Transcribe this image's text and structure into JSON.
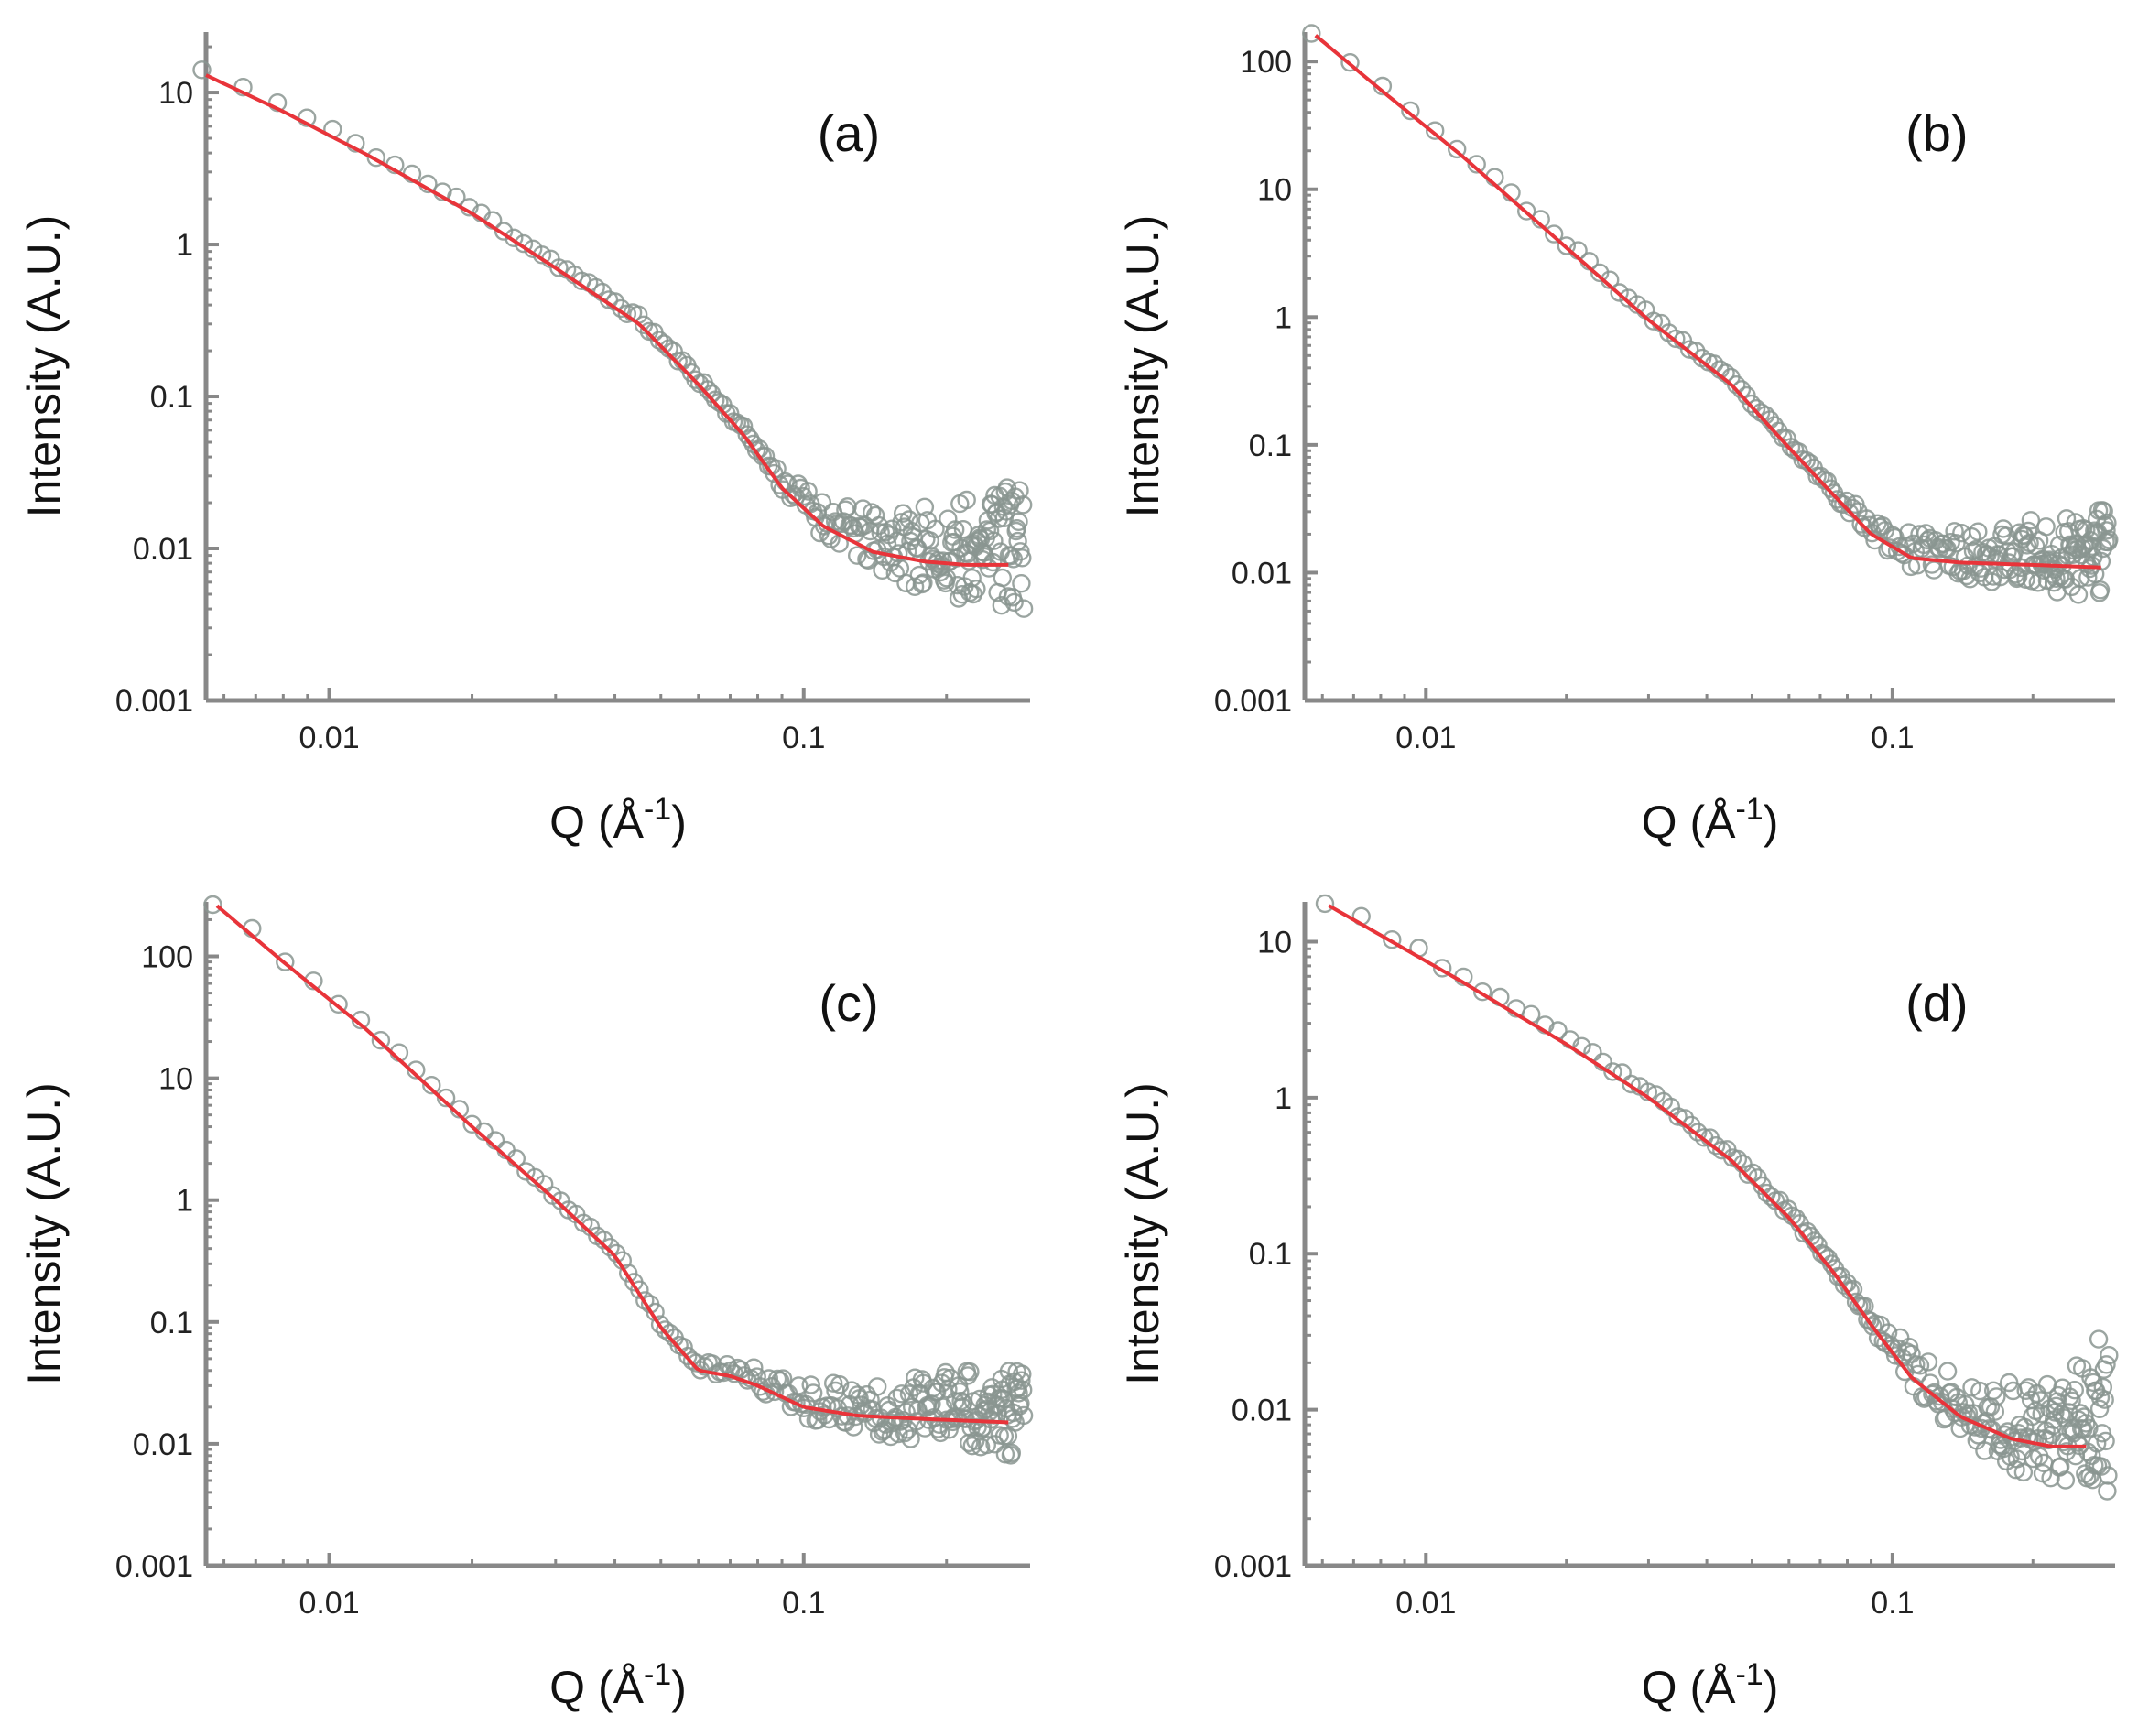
{
  "figure": {
    "description_labels": [
      "(a)",
      "(b)",
      "(c)",
      "(d)"
    ]
  },
  "chart_data": [
    {
      "type": "scatter",
      "panel": "(a)",
      "title": "",
      "xlabel": "Q (Å",
      "xlabel_exp": "-1",
      "xlabel_close": ")",
      "ylabel": "Intensity (A.U.)",
      "xscale": "log",
      "yscale": "log",
      "xlim": [
        0.0055,
        0.3
      ],
      "ylim": [
        0.001,
        25
      ],
      "xticks": [
        0.01,
        0.1
      ],
      "xticklabels": [
        "0.01",
        "0.1"
      ],
      "yticks": [
        0.001,
        0.01,
        0.1,
        1,
        10
      ],
      "yticklabels": [
        "0.001",
        "0.01",
        "0.1",
        "1",
        "10"
      ],
      "fit": {
        "x": [
          0.0055,
          0.008,
          0.012,
          0.02,
          0.03,
          0.045,
          0.06,
          0.075,
          0.09,
          0.11,
          0.14,
          0.18,
          0.22,
          0.27
        ],
        "y": [
          13,
          7.5,
          3.9,
          1.6,
          0.7,
          0.3,
          0.12,
          0.055,
          0.025,
          0.014,
          0.0095,
          0.0082,
          0.0078,
          0.0078
        ]
      },
      "points": {
        "model": "fit",
        "scatter_start": 0.08,
        "scatter_decades_max": 0.65,
        "upturn_from": 0.18,
        "upturn_to_y": 0.04,
        "n": 240,
        "seed": 11
      }
    },
    {
      "type": "scatter",
      "panel": "(b)",
      "title": "",
      "xlabel": "Q (Å",
      "xlabel_exp": "-1",
      "xlabel_close": ")",
      "ylabel": "Intensity (A.U.)",
      "xscale": "log",
      "yscale": "log",
      "xlim": [
        0.0055,
        0.3
      ],
      "ylim": [
        0.001,
        170
      ],
      "xticks": [
        0.01,
        0.1
      ],
      "xticklabels": [
        "0.01",
        "0.1"
      ],
      "yticks": [
        0.001,
        0.01,
        0.1,
        1,
        10,
        100
      ],
      "yticklabels": [
        "0.001",
        "0.01",
        "0.1",
        "1",
        "10",
        "100"
      ],
      "fit": {
        "x": [
          0.0058,
          0.008,
          0.012,
          0.02,
          0.03,
          0.045,
          0.06,
          0.075,
          0.09,
          0.11,
          0.14,
          0.2,
          0.28
        ],
        "y": [
          160,
          60,
          18,
          3.5,
          0.95,
          0.3,
          0.095,
          0.04,
          0.02,
          0.013,
          0.012,
          0.0115,
          0.011
        ]
      },
      "points": {
        "model": "fit",
        "scatter_start": 0.07,
        "scatter_decades_max": 0.55,
        "upturn_from": 0.2,
        "upturn_to_y": 0.035,
        "n": 240,
        "seed": 23
      }
    },
    {
      "type": "scatter",
      "panel": "(c)",
      "title": "",
      "xlabel": "Q (Å",
      "xlabel_exp": "-1",
      "xlabel_close": ")",
      "ylabel": "Intensity (A.U.)",
      "xscale": "log",
      "yscale": "log",
      "xlim": [
        0.0055,
        0.3
      ],
      "ylim": [
        0.001,
        280
      ],
      "xticks": [
        0.01,
        0.1
      ],
      "xticklabels": [
        "0.01",
        "0.1"
      ],
      "yticks": [
        0.001,
        0.01,
        0.1,
        1,
        10,
        100
      ],
      "yticklabels": [
        "0.001",
        "0.01",
        "0.1",
        "1",
        "10",
        "100"
      ],
      "fit": {
        "x": [
          0.0058,
          0.008,
          0.012,
          0.02,
          0.03,
          0.04,
          0.05,
          0.06,
          0.07,
          0.08,
          0.1,
          0.13,
          0.18,
          0.27
        ],
        "y": [
          260,
          90,
          25,
          4,
          1.0,
          0.35,
          0.09,
          0.04,
          0.036,
          0.03,
          0.02,
          0.017,
          0.016,
          0.015
        ]
      },
      "points": {
        "model": "fit",
        "scatter_start": 0.06,
        "scatter_decades_max": 0.6,
        "upturn_from": 0.2,
        "upturn_to_y": 0.04,
        "n": 240,
        "seed": 37
      }
    },
    {
      "type": "scatter",
      "panel": "(d)",
      "title": "",
      "xlabel": "Q (Å",
      "xlabel_exp": "-1",
      "xlabel_close": ")",
      "ylabel": "Intensity (A.U.)",
      "xscale": "log",
      "yscale": "log",
      "xlim": [
        0.0055,
        0.3
      ],
      "ylim": [
        0.001,
        18
      ],
      "xticks": [
        0.01,
        0.1
      ],
      "xticklabels": [
        "0.01",
        "0.1"
      ],
      "yticks": [
        0.001,
        0.01,
        0.1,
        1,
        10
      ],
      "yticklabels": [
        "0.001",
        "0.01",
        "0.1",
        "1",
        "10"
      ],
      "fit": {
        "x": [
          0.0062,
          0.008,
          0.012,
          0.02,
          0.03,
          0.045,
          0.06,
          0.075,
          0.09,
          0.11,
          0.14,
          0.18,
          0.22,
          0.26
        ],
        "y": [
          17,
          11,
          5.5,
          2.2,
          1.0,
          0.4,
          0.17,
          0.075,
          0.035,
          0.016,
          0.009,
          0.0065,
          0.0058,
          0.0058
        ]
      },
      "points": {
        "model": "fit",
        "scatter_start": 0.08,
        "scatter_decades_max": 0.65,
        "upturn_from": 0.17,
        "upturn_to_y": 0.04,
        "n": 240,
        "seed": 53
      }
    }
  ]
}
